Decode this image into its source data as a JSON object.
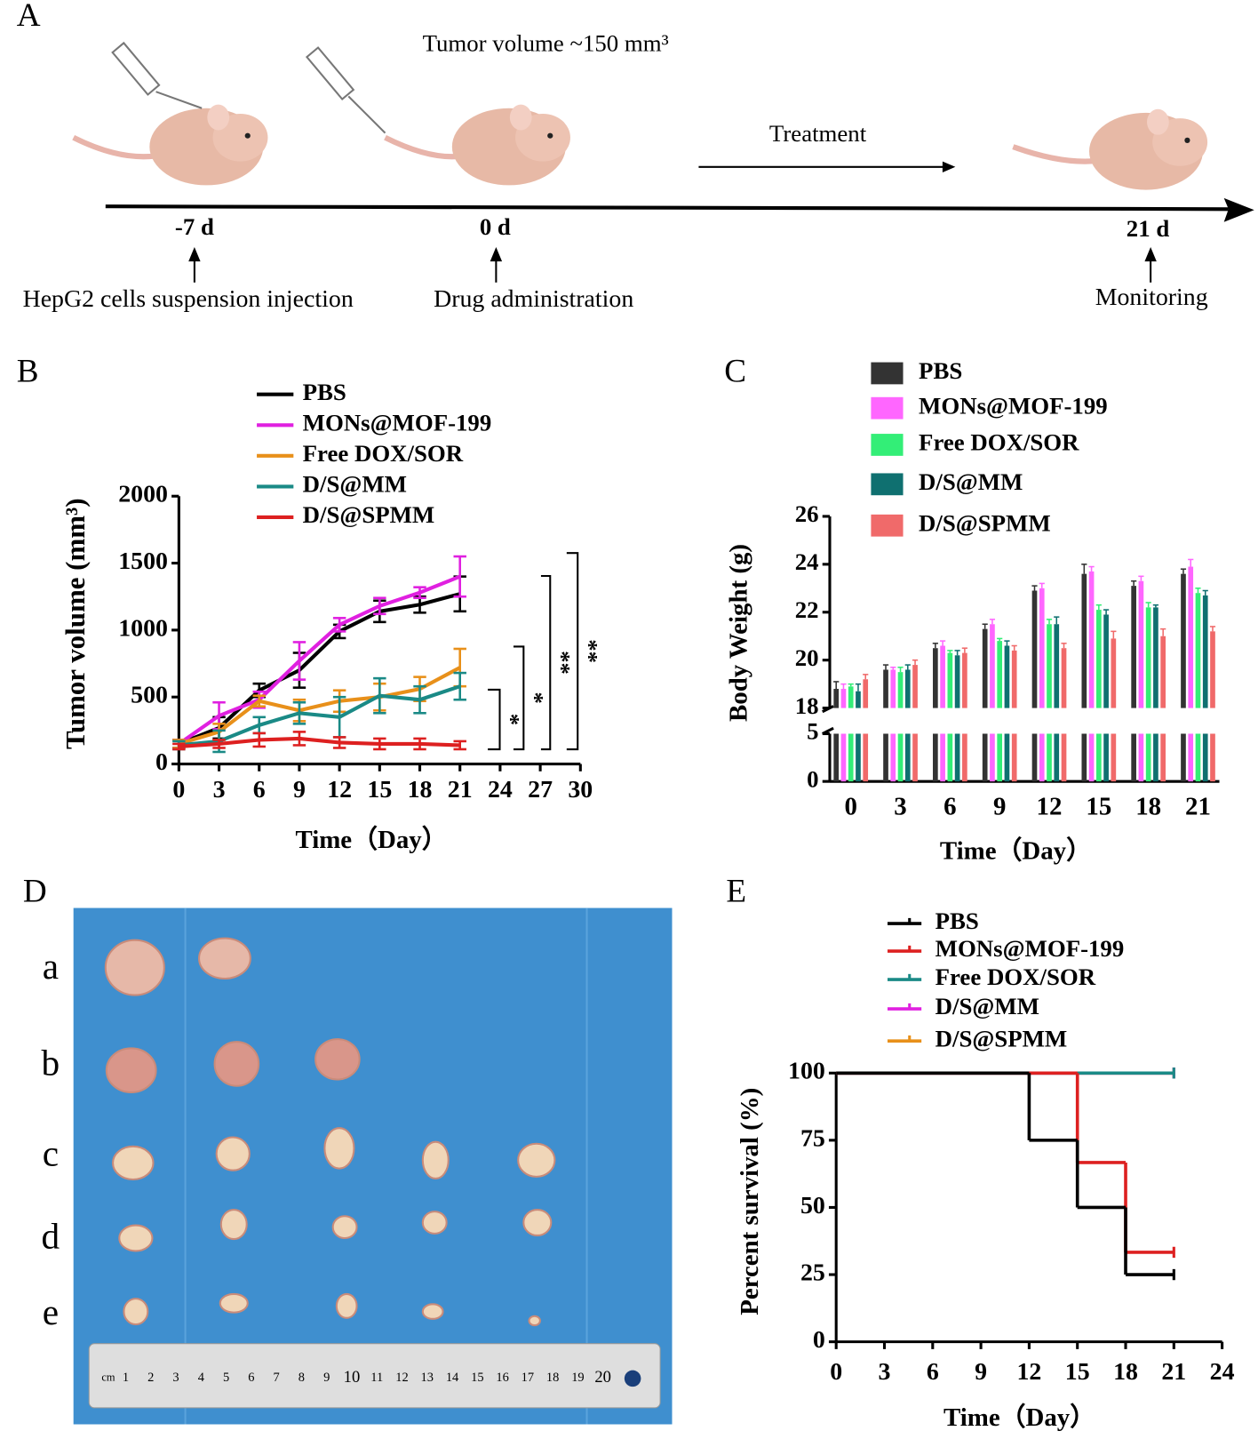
{
  "panel_labels": [
    "A",
    "B",
    "C",
    "D",
    "E"
  ],
  "panel_a": {
    "title": "Tumor volume ~150 mm³",
    "treatment": "Treatment",
    "timepoints": [
      "-7 d",
      "0 d",
      "21 d"
    ],
    "events": [
      "HepG2 cells suspension injection",
      "Drug administration",
      "Monitoring"
    ]
  },
  "panel_d": {
    "rows": [
      "a",
      "b",
      "c",
      "d",
      "e"
    ],
    "ruler_unit": "cm",
    "ruler_labels": [
      1,
      2,
      3,
      4,
      5,
      6,
      7,
      8,
      9,
      10,
      11,
      12,
      13,
      14,
      15,
      16,
      17,
      18,
      19,
      20
    ]
  },
  "chart_data": [
    {
      "type": "line",
      "x": [
        0,
        3,
        6,
        9,
        12,
        15,
        18,
        21
      ],
      "xlim": [
        0,
        30
      ],
      "xticks": [
        0,
        3,
        6,
        9,
        12,
        15,
        18,
        21,
        24,
        27,
        30
      ],
      "ylim": [
        0,
        2000
      ],
      "yticks": [
        0,
        500,
        1000,
        1500,
        2000
      ],
      "x_label": "Time（Day）",
      "y_label": "Tumor volume (mm³)",
      "series": [
        {
          "name": "PBS",
          "color": "#000000",
          "values": [
            150,
            270,
            550,
            700,
            990,
            1140,
            1190,
            1270
          ],
          "errors": [
            30,
            80,
            50,
            130,
            50,
            80,
            60,
            130
          ]
        },
        {
          "name": "MONs@MOF-199",
          "color": "#e020e0",
          "values": [
            150,
            360,
            480,
            770,
            1040,
            1180,
            1280,
            1400
          ],
          "errors": [
            30,
            100,
            60,
            140,
            50,
            60,
            40,
            150
          ]
        },
        {
          "name": "Free DOX/SOR",
          "color": "#e8901a",
          "values": [
            150,
            240,
            470,
            400,
            470,
            500,
            560,
            720
          ],
          "errors": [
            30,
            60,
            40,
            80,
            80,
            100,
            90,
            140
          ]
        },
        {
          "name": "D/S@MM",
          "color": "#1a8a86",
          "values": [
            140,
            170,
            290,
            380,
            350,
            510,
            480,
            580
          ],
          "errors": [
            30,
            80,
            60,
            80,
            150,
            130,
            100,
            100
          ]
        },
        {
          "name": "D/S@SPMM",
          "color": "#dd2020",
          "values": [
            130,
            150,
            180,
            190,
            160,
            150,
            150,
            140
          ],
          "errors": [
            20,
            30,
            50,
            50,
            40,
            40,
            40,
            30
          ]
        }
      ],
      "annotations": [
        "*",
        "*",
        "**",
        "**"
      ]
    },
    {
      "type": "bar",
      "categories": [
        0,
        3,
        6,
        9,
        12,
        15,
        18,
        21
      ],
      "ylim": [
        0,
        26
      ],
      "yticks": [
        0,
        5,
        18,
        20,
        22,
        24,
        26
      ],
      "axis_break": [
        5,
        18
      ],
      "x_label": "Time（Day）",
      "y_label": "Body Weight (g)",
      "series": [
        {
          "name": "PBS",
          "color": "#333333",
          "values": [
            18.8,
            19.6,
            20.5,
            21.3,
            22.9,
            23.6,
            23.1,
            23.6
          ],
          "errors": [
            0.3,
            0.2,
            0.2,
            0.2,
            0.2,
            0.4,
            0.2,
            0.2
          ]
        },
        {
          "name": "MONs@MOF-199",
          "color": "#ff66ff",
          "values": [
            18.8,
            19.6,
            20.6,
            21.5,
            23.0,
            23.7,
            23.3,
            23.9
          ],
          "errors": [
            0.2,
            0.1,
            0.2,
            0.2,
            0.2,
            0.2,
            0.2,
            0.3
          ]
        },
        {
          "name": "Free DOX/SOR",
          "color": "#33ee77",
          "values": [
            18.9,
            19.5,
            20.3,
            20.8,
            21.5,
            22.1,
            22.2,
            22.8
          ],
          "errors": [
            0.1,
            0.2,
            0.1,
            0.1,
            0.2,
            0.2,
            0.2,
            0.2
          ]
        },
        {
          "name": "D/S@MM",
          "color": "#0f7070",
          "values": [
            18.7,
            19.6,
            20.2,
            20.6,
            21.5,
            21.9,
            22.2,
            22.7
          ],
          "errors": [
            0.3,
            0.2,
            0.2,
            0.2,
            0.3,
            0.2,
            0.1,
            0.2
          ]
        },
        {
          "name": "D/S@SPMM",
          "color": "#f06a6a",
          "values": [
            19.2,
            19.8,
            20.3,
            20.4,
            20.5,
            20.9,
            21.0,
            21.2
          ],
          "errors": [
            0.2,
            0.2,
            0.2,
            0.2,
            0.2,
            0.3,
            0.3,
            0.2
          ]
        }
      ]
    },
    {
      "type": "step",
      "xlim": [
        0,
        24
      ],
      "xticks": [
        0,
        3,
        6,
        9,
        12,
        15,
        18,
        21,
        24
      ],
      "ylim": [
        0,
        100
      ],
      "yticks": [
        0,
        25,
        50,
        75,
        100
      ],
      "x_label": "Time（Day）",
      "y_label": "Percent survival (%)",
      "series": [
        {
          "name": "PBS",
          "color": "#000000",
          "x": [
            0,
            12,
            15,
            18,
            21
          ],
          "values": [
            100,
            75,
            50,
            25,
            25
          ]
        },
        {
          "name": "MONs@MOF-199",
          "color": "#dd2020",
          "x": [
            0,
            15,
            18,
            21
          ],
          "values": [
            100,
            66.7,
            33.3,
            33.3
          ]
        },
        {
          "name": "Free DOX/SOR",
          "color": "#1a8a86",
          "x": [
            0,
            21
          ],
          "values": [
            100,
            100
          ]
        },
        {
          "name": "D/S@MM",
          "color": "#e020e0",
          "x": [
            0,
            21
          ],
          "values": [
            100,
            100
          ]
        },
        {
          "name": "D/S@SPMM",
          "color": "#e8901a",
          "x": [
            0,
            21
          ],
          "values": [
            100,
            100
          ]
        }
      ]
    }
  ]
}
